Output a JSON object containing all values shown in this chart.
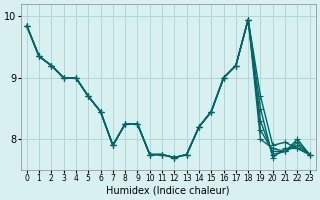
{
  "xlabel": "Humidex (Indice chaleur)",
  "ylabel": "",
  "bg_color": "#d8f0f0",
  "line_color": "#006666",
  "grid_color": "#b0d8d8",
  "xlim": [
    -0.5,
    23.5
  ],
  "ylim": [
    7.5,
    10.2
  ],
  "yticks": [
    8,
    9,
    10
  ],
  "xtick_labels": [
    "0",
    "1",
    "2",
    "3",
    "4",
    "5",
    "6",
    "7",
    "8",
    "9",
    "10",
    "11",
    "12",
    "13",
    "14",
    "15",
    "16",
    "17",
    "18",
    "19",
    "20",
    "21",
    "22",
    "23"
  ],
  "lines": [
    [
      9.85,
      9.35,
      9.2,
      9.0,
      9.0,
      8.7,
      8.45,
      7.9,
      8.25,
      8.25,
      7.75,
      7.75,
      7.7,
      7.75,
      8.2,
      8.45,
      9.0,
      9.2,
      9.95,
      8.7,
      7.9,
      7.95,
      7.85,
      7.75
    ],
    [
      9.85,
      9.35,
      9.2,
      9.0,
      9.0,
      8.7,
      8.45,
      7.9,
      8.25,
      8.25,
      7.75,
      7.75,
      7.7,
      7.75,
      8.2,
      8.45,
      9.0,
      9.2,
      9.95,
      8.5,
      7.7,
      7.85,
      7.85,
      7.75
    ],
    [
      9.85,
      9.35,
      9.2,
      9.0,
      9.0,
      8.7,
      8.45,
      7.9,
      8.25,
      8.25,
      7.75,
      7.75,
      7.7,
      7.75,
      8.2,
      8.45,
      9.0,
      9.2,
      9.95,
      8.3,
      7.75,
      7.8,
      7.9,
      7.75
    ],
    [
      9.85,
      9.35,
      9.2,
      9.0,
      9.0,
      8.7,
      8.45,
      7.9,
      8.25,
      8.25,
      7.75,
      7.75,
      7.7,
      7.75,
      8.2,
      8.45,
      9.0,
      9.2,
      9.95,
      8.15,
      7.8,
      7.8,
      7.95,
      7.75
    ],
    [
      9.85,
      9.35,
      9.2,
      9.0,
      9.0,
      8.7,
      8.45,
      7.9,
      8.25,
      8.25,
      7.75,
      7.75,
      7.7,
      7.75,
      8.2,
      8.45,
      9.0,
      9.2,
      9.95,
      8.0,
      7.85,
      7.8,
      8.0,
      7.75
    ]
  ],
  "marker": "+",
  "markersize": 4,
  "linewidth": 1.0
}
